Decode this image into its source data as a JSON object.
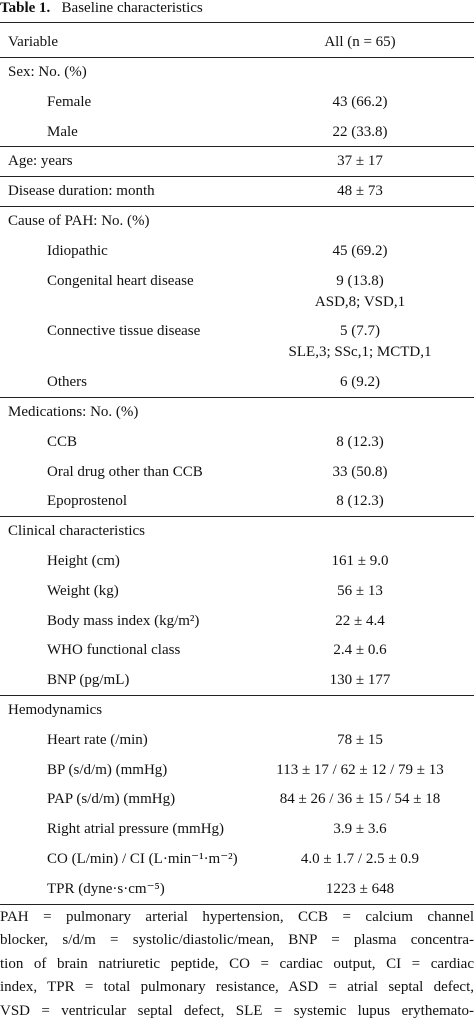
{
  "title": {
    "label": "Table 1.",
    "text": "Baseline characteristics"
  },
  "columns": [
    "Variable",
    "All (n = 65)"
  ],
  "sections": [
    {
      "heading": {
        "label": "Sex: No. (%)"
      },
      "rows": [
        {
          "label": "Female",
          "value": "43 (66.2)"
        },
        {
          "label": "Male",
          "value": "22 (33.8)"
        }
      ]
    },
    {
      "heading": {
        "label": "Age: years",
        "value": "37 ± 17"
      },
      "rows": []
    },
    {
      "heading": {
        "label": "Disease duration: month",
        "value": "48 ± 73"
      },
      "rows": []
    },
    {
      "heading": {
        "label": "Cause of PAH: No. (%)"
      },
      "rows": [
        {
          "label": "Idiopathic",
          "value": "45 (69.2)"
        },
        {
          "label": "Congenital heart disease",
          "value": "9 (13.8)",
          "detail": "ASD,8; VSD,1"
        },
        {
          "label": "Connective tissue disease",
          "value": "5 (7.7)",
          "detail": "SLE,3; SSc,1; MCTD,1"
        },
        {
          "label": "Others",
          "value": "6 (9.2)"
        }
      ]
    },
    {
      "heading": {
        "label": "Medications: No. (%)"
      },
      "rows": [
        {
          "label": "CCB",
          "value": "8 (12.3)"
        },
        {
          "label": "Oral drug other than CCB",
          "value": "33 (50.8)"
        },
        {
          "label": "Epoprostenol",
          "value": "8 (12.3)"
        }
      ]
    },
    {
      "heading": {
        "label": "Clinical characteristics"
      },
      "rows": [
        {
          "label": "Height (cm)",
          "value": "161 ± 9.0"
        },
        {
          "label": "Weight (kg)",
          "value": "56 ± 13"
        },
        {
          "label": "Body mass index (kg/m²)",
          "value": "22 ± 4.4"
        },
        {
          "label": "WHO functional class",
          "value": "2.4 ± 0.6"
        },
        {
          "label": "BNP (pg/mL)",
          "value": "130 ± 177"
        }
      ]
    },
    {
      "heading": {
        "label": "Hemodynamics"
      },
      "rows": [
        {
          "label": "Heart rate (/min)",
          "value": "78 ± 15"
        },
        {
          "label": "BP (s/d/m) (mmHg)",
          "value": "113 ± 17 / 62 ± 12 / 79 ± 13"
        },
        {
          "label": "PAP (s/d/m) (mmHg)",
          "value": "84 ± 26 / 36 ± 15 / 54 ± 18"
        },
        {
          "label": "Right atrial pressure (mmHg)",
          "value": "3.9 ± 3.6"
        },
        {
          "label": "CO (L/min) / CI (L·min⁻¹·m⁻²)",
          "value": "4.0 ± 1.7 / 2.5 ± 0.9"
        },
        {
          "label": "TPR (dyne·s·cm⁻⁵)",
          "value": "1223 ± 648"
        }
      ]
    }
  ],
  "footnote": [
    "PAH = pulmonary arterial hypertension, CCB = calcium channel",
    "blocker, s/d/m = systolic/diastolic/mean, BNP = plasma concentra-",
    "tion of brain natriuretic peptide, CO = cardiac output, CI = cardiac",
    "index, TPR = total pulmonary resistance, ASD = atrial septal defect,",
    "VSD = ventricular septal defect, SLE = systemic lupus erythemato-"
  ]
}
